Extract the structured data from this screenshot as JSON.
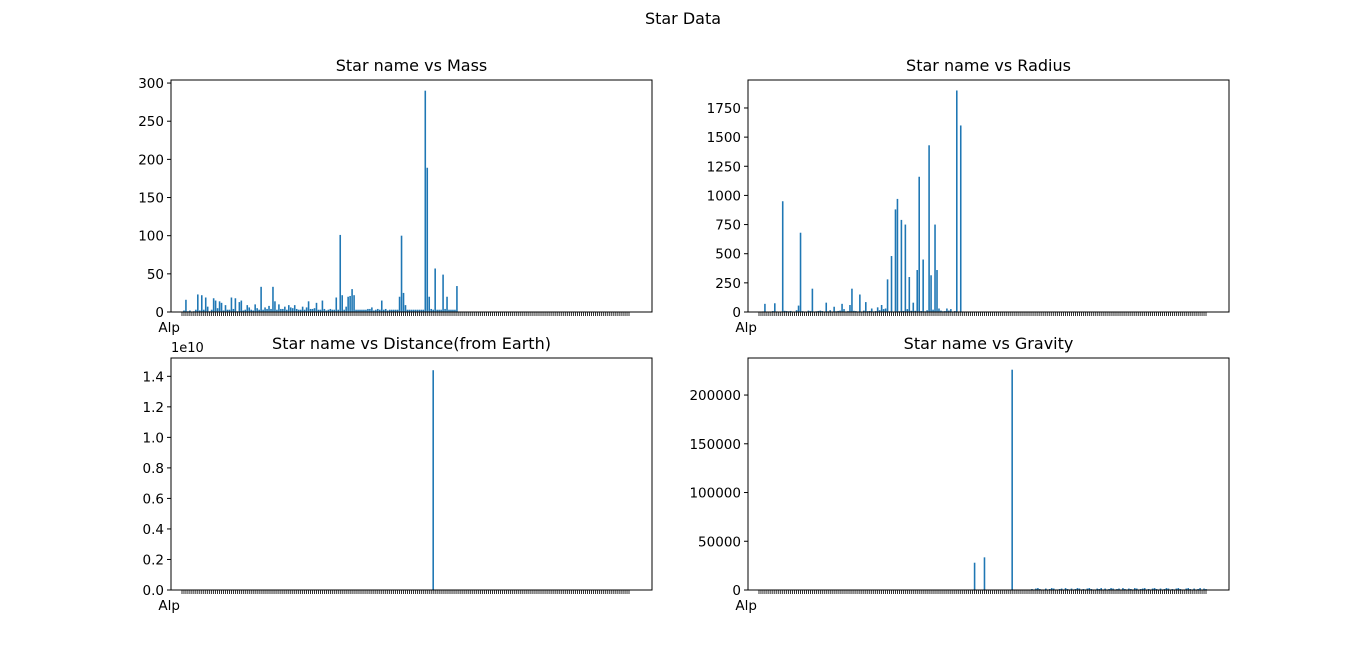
{
  "figure": {
    "title": "Star Data"
  },
  "colors": {
    "bar": "#1f77b4",
    "axis": "#000000"
  },
  "chart_data": [
    {
      "type": "bar",
      "title": "Star name vs Mass",
      "xlabel": "",
      "ylabel": "",
      "first_tick_label": "Alp",
      "n_categories": 227,
      "ylim": [
        0,
        304
      ],
      "yticks": [
        0,
        50,
        100,
        150,
        200,
        250,
        300
      ],
      "ytick_labels": [
        "0",
        "50",
        "100",
        "150",
        "200",
        "250",
        "300"
      ],
      "offset_label": "",
      "values": [
        0,
        2,
        16,
        1,
        2,
        0,
        1,
        3,
        23,
        2,
        22,
        3,
        19,
        7,
        1,
        3,
        18,
        15,
        5,
        14,
        12,
        2,
        9,
        3,
        3,
        19,
        4,
        18,
        1,
        13,
        15,
        2,
        3,
        9,
        6,
        3,
        2,
        10,
        5,
        3,
        33,
        3,
        6,
        4,
        8,
        4,
        33,
        14,
        3,
        10,
        4,
        4,
        7,
        3,
        9,
        6,
        5,
        9,
        4,
        3,
        3,
        7,
        3,
        6,
        14,
        4,
        4,
        5,
        12,
        3,
        3,
        15,
        4,
        2,
        3,
        4,
        3,
        3,
        19,
        3,
        101,
        22,
        3,
        7,
        20,
        21,
        30,
        22,
        3,
        3,
        3,
        3,
        3,
        3,
        4,
        4,
        6,
        2,
        3,
        4,
        3,
        15,
        3,
        4,
        2,
        3,
        3,
        3,
        3,
        3,
        20,
        100,
        25,
        9,
        3,
        3,
        3,
        3,
        3,
        3,
        3,
        3,
        3,
        290,
        189,
        20,
        4,
        3,
        57,
        3,
        3,
        3,
        49,
        4,
        20,
        3,
        3,
        3,
        3,
        34,
        0,
        0,
        0,
        0,
        0,
        0,
        0,
        0,
        0,
        0,
        0,
        0,
        0,
        0,
        0,
        0,
        0,
        0,
        0,
        0,
        0,
        0,
        0,
        0,
        0,
        0,
        0,
        0,
        0,
        0,
        0,
        0,
        0,
        0,
        0,
        0,
        0,
        0,
        0,
        0,
        0,
        0,
        0,
        0,
        0,
        0,
        0,
        0,
        0,
        0,
        0,
        0,
        0,
        0,
        0,
        0,
        0,
        0,
        0,
        0,
        0,
        0,
        0,
        0,
        0,
        0,
        0,
        0,
        0,
        0,
        0,
        0,
        0,
        0,
        0,
        0,
        0,
        0,
        0,
        0,
        0,
        0,
        0
      ]
    },
    {
      "type": "bar",
      "title": "Star name vs Radius",
      "xlabel": "",
      "ylabel": "",
      "first_tick_label": "Alp",
      "n_categories": 227,
      "ylim": [
        0,
        1990
      ],
      "yticks": [
        0,
        250,
        500,
        750,
        1000,
        1250,
        1500,
        1750
      ],
      "ytick_labels": [
        "0",
        "250",
        "500",
        "750",
        "1000",
        "1250",
        "1500",
        "1750"
      ],
      "offset_label": "",
      "values": [
        0,
        3,
        5,
        70,
        2,
        4,
        3,
        8,
        75,
        5,
        3,
        4,
        950,
        10,
        8,
        6,
        9,
        3,
        4,
        15,
        55,
        680,
        7,
        4,
        3,
        12,
        8,
        200,
        3,
        6,
        9,
        12,
        8,
        4,
        80,
        6,
        15,
        3,
        45,
        6,
        9,
        12,
        70,
        25,
        5,
        8,
        60,
        200,
        10,
        8,
        5,
        150,
        4,
        12,
        85,
        7,
        9,
        30,
        5,
        8,
        40,
        15,
        60,
        25,
        30,
        280,
        6,
        480,
        3,
        880,
        970,
        6,
        790,
        8,
        750,
        25,
        300,
        10,
        80,
        10,
        360,
        1160,
        8,
        450,
        6,
        15,
        1430,
        315,
        20,
        750,
        360,
        30,
        12,
        6,
        8,
        30,
        12,
        25,
        4,
        8,
        1900,
        3,
        1600,
        0,
        0,
        0,
        0,
        0,
        0,
        0,
        0,
        0,
        0,
        0,
        0,
        0,
        0,
        0,
        0,
        0,
        0,
        0,
        0,
        0,
        0,
        0,
        0,
        0,
        0,
        0,
        0,
        0,
        0,
        0,
        0,
        0,
        0,
        0,
        0,
        0,
        0,
        0,
        0,
        0,
        0,
        0,
        0,
        0,
        0,
        0,
        0,
        0,
        0,
        0,
        0,
        0,
        0,
        0,
        0,
        0,
        0,
        0,
        0,
        0,
        0,
        0,
        0,
        0,
        0,
        0,
        0,
        0,
        0,
        0,
        0,
        0,
        0,
        0,
        0,
        0,
        0,
        0,
        0,
        0,
        0,
        0,
        0,
        0,
        0,
        0,
        0,
        0,
        0,
        0,
        0,
        0,
        0,
        0,
        0,
        0,
        0,
        0,
        0,
        0,
        0,
        0,
        0,
        0,
        0,
        0,
        0,
        0,
        0,
        0,
        0,
        0,
        0,
        0,
        0,
        0,
        0,
        0,
        0,
        0
      ]
    },
    {
      "type": "bar",
      "title": "Star name vs Distance(from Earth)",
      "xlabel": "",
      "ylabel": "",
      "first_tick_label": "Alp",
      "n_categories": 227,
      "ylim": [
        0,
        15200000000
      ],
      "yticks": [
        0,
        2000000000,
        4000000000,
        6000000000,
        8000000000,
        10000000000,
        12000000000,
        14000000000
      ],
      "ytick_labels": [
        "0.0",
        "0.2",
        "0.4",
        "0.6",
        "0.8",
        "1.0",
        "1.2",
        "1.4"
      ],
      "offset_label": "1e10",
      "values": [
        0,
        0,
        0,
        0,
        0,
        0,
        0,
        0,
        0,
        0,
        0,
        0,
        0,
        0,
        0,
        0,
        0,
        0,
        0,
        0,
        0,
        0,
        0,
        0,
        0,
        0,
        0,
        0,
        0,
        0,
        0,
        0,
        0,
        0,
        0,
        0,
        0,
        0,
        0,
        0,
        0,
        0,
        0,
        0,
        0,
        0,
        0,
        0,
        0,
        0,
        0,
        0,
        0,
        0,
        0,
        0,
        0,
        0,
        0,
        0,
        0,
        0,
        0,
        0,
        0,
        0,
        0,
        0,
        0,
        0,
        0,
        0,
        0,
        0,
        0,
        0,
        0,
        0,
        0,
        0,
        0,
        0,
        0,
        0,
        0,
        0,
        0,
        0,
        0,
        0,
        0,
        0,
        0,
        0,
        0,
        0,
        0,
        0,
        0,
        0,
        0,
        0,
        0,
        0,
        0,
        0,
        0,
        0,
        0,
        0,
        0,
        0,
        0,
        0,
        0,
        0,
        0,
        0,
        0,
        0,
        0,
        0,
        0,
        0,
        0,
        0,
        0,
        14400000000,
        0,
        0,
        0,
        0,
        0,
        0,
        0,
        0,
        0,
        0,
        0,
        0,
        0,
        0,
        0,
        0,
        0,
        0,
        0,
        0,
        0,
        0,
        0,
        0,
        0,
        0,
        0,
        0,
        0,
        0,
        0,
        0,
        0,
        0,
        0,
        0,
        0,
        0,
        0,
        0,
        0,
        0,
        0,
        0,
        0,
        0,
        0,
        0,
        0,
        0,
        0,
        0,
        0,
        0,
        0,
        0,
        0,
        0,
        0,
        0,
        0,
        0,
        0,
        0,
        0,
        0,
        0,
        0,
        0,
        0,
        0,
        0,
        0,
        0,
        0,
        0,
        0,
        0,
        0,
        0,
        0,
        0,
        0,
        0,
        0,
        0,
        0,
        0,
        0,
        0,
        0,
        0,
        0,
        0,
        0,
        0,
        0,
        0,
        0,
        0,
        0,
        0,
        0,
        0,
        0,
        0,
        0,
        0
      ]
    },
    {
      "type": "bar",
      "title": "Star name vs Gravity",
      "xlabel": "",
      "ylabel": "",
      "first_tick_label": "Alp",
      "n_categories": 227,
      "ylim": [
        0,
        238000
      ],
      "yticks": [
        0,
        50000,
        100000,
        150000,
        200000
      ],
      "ytick_labels": [
        "0",
        "50000",
        "100000",
        "150000",
        "200000"
      ],
      "offset_label": "",
      "values": [
        0,
        0,
        0,
        0,
        0,
        0,
        0,
        0,
        0,
        0,
        0,
        0,
        0,
        0,
        0,
        0,
        0,
        0,
        0,
        0,
        0,
        0,
        0,
        0,
        0,
        0,
        0,
        0,
        0,
        0,
        0,
        0,
        0,
        0,
        0,
        0,
        0,
        0,
        0,
        0,
        0,
        0,
        0,
        0,
        0,
        0,
        0,
        0,
        0,
        0,
        0,
        0,
        0,
        0,
        0,
        0,
        0,
        0,
        0,
        0,
        0,
        0,
        0,
        0,
        0,
        0,
        0,
        0,
        0,
        0,
        0,
        0,
        0,
        0,
        0,
        0,
        0,
        0,
        0,
        0,
        0,
        0,
        0,
        0,
        0,
        0,
        0,
        0,
        0,
        0,
        0,
        0,
        0,
        0,
        0,
        0,
        0,
        0,
        0,
        0,
        0,
        0,
        0,
        0,
        0,
        0,
        0,
        0,
        0,
        28000,
        0,
        0,
        0,
        0,
        33500,
        0,
        0,
        0,
        0,
        0,
        0,
        0,
        0,
        0,
        0,
        0,
        0,
        0,
        226000,
        0,
        0,
        0,
        0,
        0,
        0,
        0,
        0,
        0,
        1000,
        500,
        1500,
        2000,
        1000,
        500,
        0,
        1500,
        0,
        1000,
        2000,
        1500,
        500,
        0,
        1000,
        1500,
        0,
        2000,
        1000,
        500,
        1500,
        0,
        1000,
        2000,
        1500,
        500,
        1000,
        0,
        1500,
        2000,
        1000,
        500,
        0,
        1500,
        1000,
        2000,
        500,
        1500,
        0,
        1000,
        2000,
        1500,
        500,
        1000,
        1500,
        0,
        2000,
        1000,
        500,
        1500,
        1000,
        0,
        2000,
        1500,
        500,
        1000,
        1500,
        2000,
        0,
        1000,
        500,
        1500,
        2000,
        1000,
        0,
        1500,
        500,
        1000,
        2000,
        1500,
        0,
        1000,
        500,
        1500,
        2000,
        1000,
        500,
        0,
        1500,
        2000,
        1000,
        500,
        1500,
        0,
        1000,
        2000,
        500,
        1500,
        1000,
        0,
        2000,
        1500,
        1000
      ]
    }
  ]
}
